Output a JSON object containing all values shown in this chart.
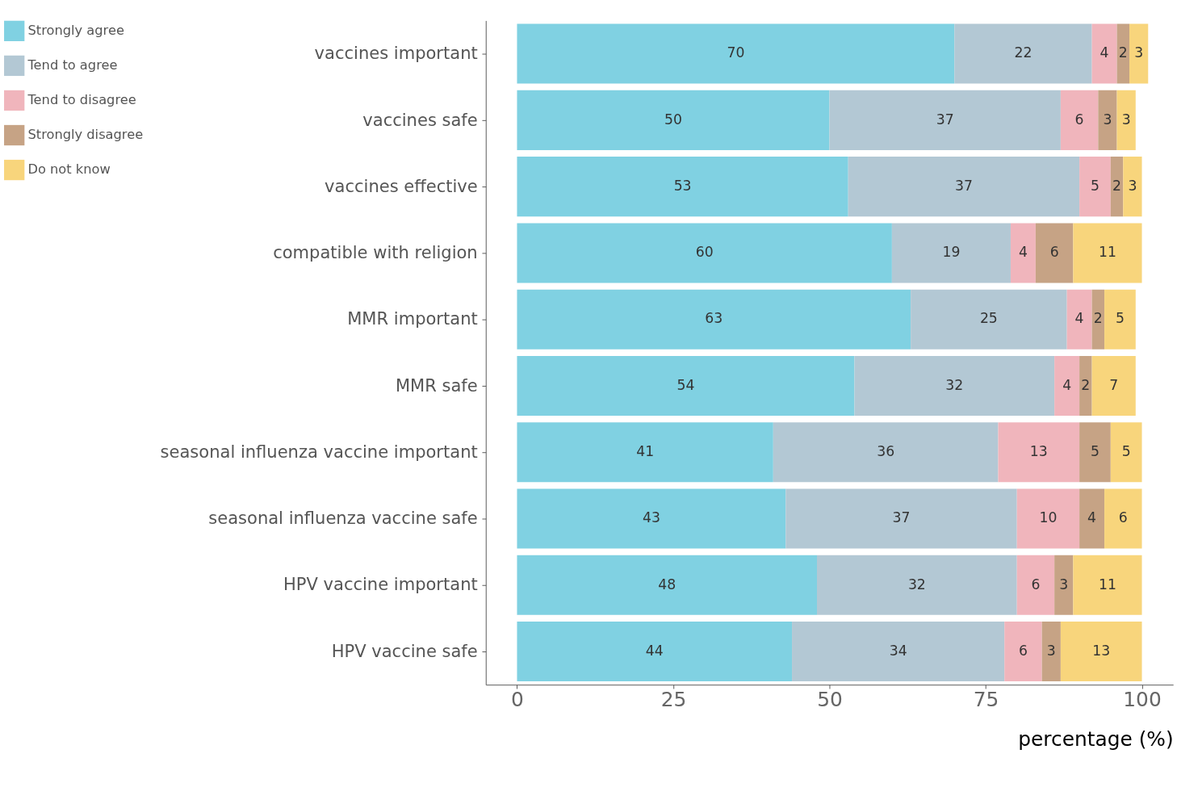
{
  "chart_data": {
    "type": "bar",
    "orientation": "horizontal",
    "stacked": true,
    "data_labels": true,
    "categories": [
      "vaccines important",
      "vaccines safe",
      "vaccines effective",
      "compatible with religion",
      "MMR important",
      "MMR safe",
      "seasonal influenza vaccine important",
      "seasonal influenza vaccine safe",
      "HPV vaccine important",
      "HPV vaccine safe"
    ],
    "series": [
      {
        "name": "Strongly agree",
        "color": "#80d1e2",
        "values": [
          70,
          50,
          53,
          60,
          63,
          54,
          41,
          43,
          48,
          44
        ]
      },
      {
        "name": "Tend to agree",
        "color": "#b3c8d4",
        "values": [
          22,
          37,
          37,
          19,
          25,
          32,
          36,
          37,
          32,
          34
        ]
      },
      {
        "name": "Tend to disagree",
        "color": "#f0b5bc",
        "values": [
          4,
          6,
          5,
          4,
          4,
          4,
          13,
          10,
          6,
          6
        ]
      },
      {
        "name": "Strongly disagree",
        "color": "#c6a385",
        "values": [
          2,
          3,
          2,
          6,
          2,
          2,
          5,
          4,
          3,
          3
        ]
      },
      {
        "name": "Do not know",
        "color": "#f8d57c",
        "values": [
          3,
          3,
          3,
          11,
          5,
          7,
          5,
          6,
          11,
          13
        ]
      }
    ],
    "xlim": [
      -5,
      105
    ],
    "xticks": [
      0,
      25,
      50,
      75,
      100
    ],
    "xlabel": "percentage (%)",
    "grid": false,
    "legend": "left"
  }
}
